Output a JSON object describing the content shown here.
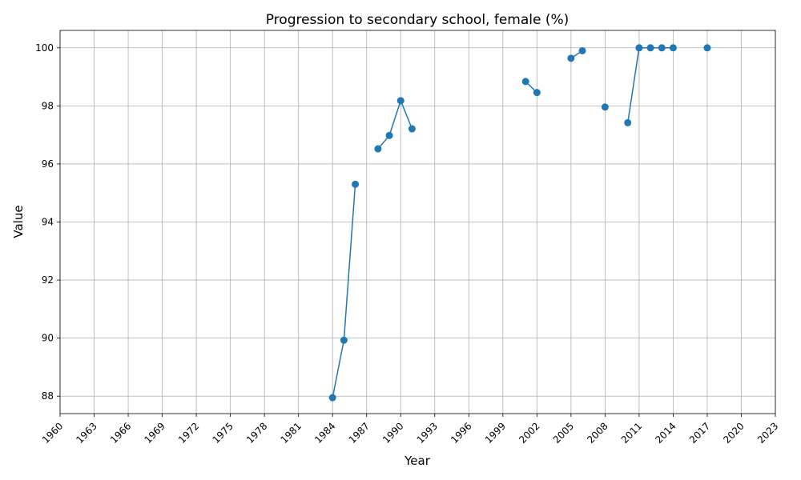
{
  "chart_data": {
    "type": "line",
    "title": "Progression to secondary school, female (%)",
    "xlabel": "Year",
    "ylabel": "Value",
    "xlim": [
      1960,
      2023
    ],
    "ylim": [
      87.4,
      100.6
    ],
    "xticks": [
      1960,
      1963,
      1966,
      1969,
      1972,
      1975,
      1978,
      1981,
      1984,
      1987,
      1990,
      1993,
      1996,
      1999,
      2002,
      2005,
      2008,
      2011,
      2014,
      2017,
      2020,
      2023
    ],
    "yticks": [
      88,
      90,
      92,
      94,
      96,
      98,
      100
    ],
    "grid": true,
    "series": [
      {
        "color": "#1f77b4",
        "points": [
          {
            "x": 1984,
            "y": 87.95
          },
          {
            "x": 1985,
            "y": 89.93
          },
          {
            "x": 1986,
            "y": 95.3
          },
          {
            "x": 1987,
            "y": null
          },
          {
            "x": 1988,
            "y": 96.52
          },
          {
            "x": 1989,
            "y": 96.98
          },
          {
            "x": 1990,
            "y": 98.18
          },
          {
            "x": 1991,
            "y": 97.21
          },
          {
            "x": 1992,
            "y": null
          },
          {
            "x": 2001,
            "y": 98.84
          },
          {
            "x": 2002,
            "y": 98.46
          },
          {
            "x": 2003,
            "y": null
          },
          {
            "x": 2005,
            "y": 99.64
          },
          {
            "x": 2006,
            "y": 99.9
          },
          {
            "x": 2007,
            "y": null
          },
          {
            "x": 2008,
            "y": 97.96
          },
          {
            "x": 2009,
            "y": null
          },
          {
            "x": 2010,
            "y": 97.42
          },
          {
            "x": 2011,
            "y": 100
          },
          {
            "x": 2012,
            "y": 100
          },
          {
            "x": 2013,
            "y": 100
          },
          {
            "x": 2014,
            "y": 100
          },
          {
            "x": 2015,
            "y": null
          },
          {
            "x": 2017,
            "y": 100
          }
        ]
      }
    ]
  }
}
